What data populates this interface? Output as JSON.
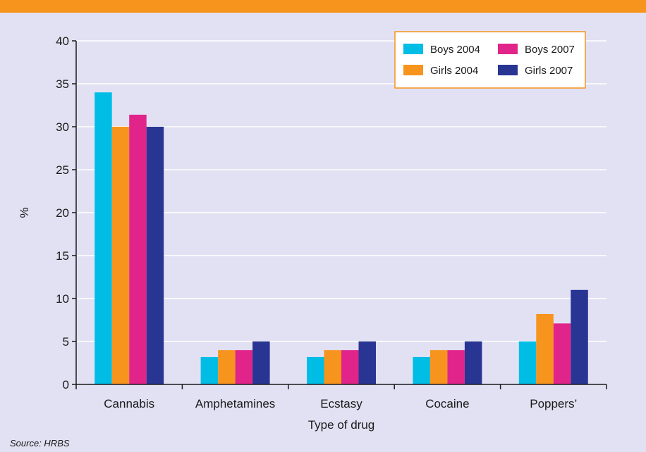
{
  "chart_data": {
    "type": "bar",
    "categories": [
      "Cannabis",
      "Amphetamines",
      "Ecstasy",
      "Cocaine",
      "Poppers’"
    ],
    "series": [
      {
        "name": "Boys 2004",
        "values": [
          34,
          3.2,
          3.2,
          3.2,
          5
        ],
        "color": "#00bde6"
      },
      {
        "name": "Girls 2004",
        "values": [
          30,
          4,
          4,
          4,
          8.2
        ],
        "color": "#f7941d"
      },
      {
        "name": "Boys 2007",
        "values": [
          31.4,
          4,
          4,
          4,
          7.1
        ],
        "color": "#e0248a"
      },
      {
        "name": "Girls 2007",
        "values": [
          30,
          5,
          5,
          5,
          11
        ],
        "color": "#283593"
      }
    ],
    "xlabel": "Type of drug",
    "ylabel": "%",
    "ylim": [
      0,
      40
    ],
    "yticks": [
      0,
      5,
      10,
      15,
      20,
      25,
      30,
      35,
      40
    ],
    "grid": true,
    "legend_position": "top-right",
    "legend_border_color": "#f7941d",
    "source": "Source: HRBS"
  }
}
